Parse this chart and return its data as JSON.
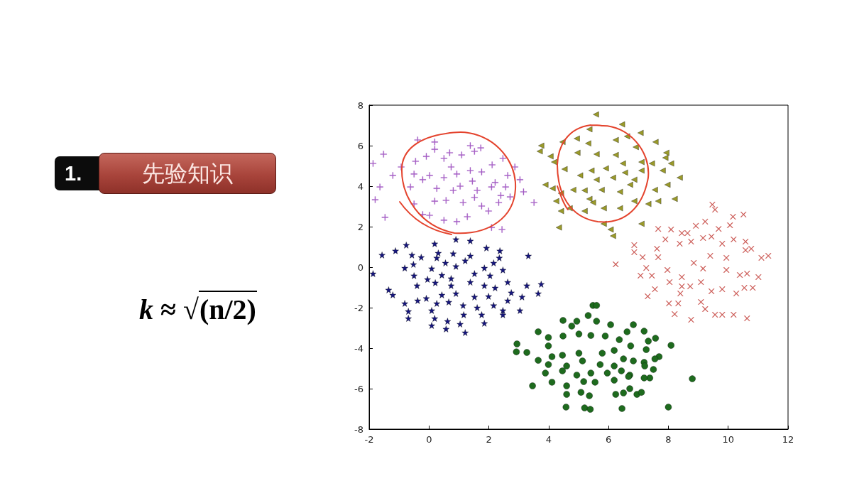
{
  "chart_data": {
    "type": "scatter",
    "annotations": [
      "1.",
      "先验知识",
      "k ≈ √(n/2)"
    ],
    "xlim": [
      -2,
      12
    ],
    "ylim": [
      -8,
      8
    ],
    "xticks": [
      -2,
      0,
      2,
      4,
      6,
      8,
      10,
      12
    ],
    "yticks": [
      -8,
      -6,
      -4,
      -2,
      0,
      2,
      4,
      6,
      8
    ],
    "series": [
      {
        "marker": "plus",
        "color": "#a45cc4",
        "x": [
          -1.52,
          -0.38,
          0.19,
          0.19,
          -1.87,
          -1.21,
          -1.64,
          -1.8,
          -1.47,
          -0.45,
          -0.09,
          0.5,
          0.69,
          1.09,
          1.38,
          1.73,
          1.52,
          2.11,
          2.47,
          2.87,
          3.04,
          3.16,
          3.51,
          2.63,
          2.21,
          1.76,
          1.45,
          0.93,
          0.5,
          0.02,
          -0.21,
          -0.5,
          -0.62,
          0.26,
          0.81,
          1.04,
          1.61,
          2.09,
          2.56,
          0.19,
          0.57,
          1.14,
          1.52,
          1.76,
          2.33,
          -0.5,
          -0.21,
          0.5,
          0.93,
          1.28,
          1.99,
          2.44,
          2.09,
          0.02,
          0.74,
          1.38,
          2.4,
          2.71,
          -0.93
        ],
        "values": [
          5.58,
          6.28,
          6.18,
          5.82,
          5.12,
          4.53,
          3.96,
          3.33,
          2.46,
          5.23,
          5.47,
          5.37,
          5.65,
          5.54,
          6.0,
          5.89,
          5.72,
          5.05,
          5.37,
          4.95,
          4.32,
          3.72,
          3.19,
          4.53,
          4.18,
          4.7,
          4.25,
          4.6,
          4.42,
          4.53,
          4.32,
          4.6,
          3.96,
          3.89,
          3.79,
          4.0,
          3.79,
          3.96,
          3.96,
          3.26,
          3.3,
          3.19,
          3.44,
          3.02,
          3.19,
          3.12,
          2.6,
          2.32,
          2.25,
          2.49,
          2.77,
          1.86,
          1.96,
          2.56,
          4.95,
          4.77,
          3.54,
          3.47,
          4.95
        ]
      },
      {
        "marker": "triangle",
        "color": "#9a9a2a",
        "x": [
          5.58,
          6.45,
          7.07,
          7.57,
          3.75,
          3.7,
          4.06,
          4.46,
          4.94,
          5.36,
          5.32,
          6.24,
          6.62,
          6.91,
          7.93,
          7.9,
          8.09,
          8.38,
          7.81,
          7.45,
          7.1,
          4.18,
          4.53,
          3.89,
          4.13,
          4.41,
          4.25,
          4.41,
          4.7,
          4.34,
          5.2,
          5.48,
          5.84,
          6.07,
          6.15,
          5.84,
          7.1,
          6.38,
          6.86,
          7.33,
          7.66,
          8.21,
          7.97,
          7.55,
          4.96,
          5.6,
          5.91,
          5.43,
          5.05,
          5.6,
          6.15,
          6.55,
          6.86,
          7.1,
          5.2,
          5.77,
          6.38,
          6.72,
          5.36,
          4.82,
          6.24,
          6.48
        ],
        "values": [
          7.54,
          7.05,
          6.63,
          6.18,
          6.0,
          5.72,
          5.47,
          6.18,
          6.35,
          6.81,
          6.11,
          6.28,
          6.46,
          5.93,
          5.65,
          5.4,
          5.12,
          4.42,
          4.77,
          5.12,
          5.19,
          5.19,
          4.84,
          4.07,
          3.89,
          3.65,
          3.26,
          2.77,
          2.91,
          1.96,
          2.77,
          3.19,
          2.91,
          1.86,
          1.54,
          2.14,
          2.14,
          2.91,
          3.26,
          3.12,
          3.26,
          3.37,
          4.07,
          3.82,
          5.65,
          5.58,
          4.88,
          4.77,
          4.53,
          4.32,
          4.42,
          4.67,
          4.32,
          4.77,
          3.79,
          3.82,
          3.72,
          4.07,
          3.37,
          3.82,
          5.54,
          5.12
        ]
      },
      {
        "marker": "cross",
        "color": "#c8504c",
        "x": [
          9.47,
          9.56,
          10.16,
          10.51,
          7.66,
          8.09,
          8.45,
          8.64,
          8.92,
          9.23,
          9.68,
          10.06,
          6.86,
          6.86,
          6.24,
          7.14,
          7.62,
          7.9,
          8.38,
          8.76,
          9.16,
          9.44,
          9.8,
          10.18,
          10.58,
          10.77,
          11.11,
          11.34,
          7.26,
          7.07,
          7.45,
          7.55,
          7.31,
          7.97,
          8.04,
          8.45,
          8.45,
          8.73,
          8.4,
          8.02,
          8.33,
          8.21,
          8.76,
          9.09,
          9.23,
          9.56,
          9.8,
          10.18,
          10.63,
          10.27,
          10.54,
          10.82,
          10.39,
          10.63,
          11.01,
          9.8,
          9.44,
          9.16,
          8.85,
          9.4,
          9.94,
          9.94,
          9.09,
          10.58,
          7.66
        ],
        "values": [
          3.09,
          2.84,
          2.49,
          2.6,
          1.89,
          1.86,
          1.68,
          1.68,
          2.04,
          2.25,
          1.89,
          2.07,
          1.09,
          0.74,
          0.14,
          0.49,
          0.91,
          1.37,
          1.16,
          1.26,
          1.44,
          1.51,
          1.16,
          1.37,
          1.26,
          0.91,
          0.46,
          0.56,
          -0.04,
          -0.42,
          -0.42,
          -1.09,
          -1.44,
          -0.14,
          -0.74,
          -0.49,
          -0.95,
          -0.95,
          -1.3,
          -1.79,
          -1.79,
          -2.32,
          -2.6,
          -1.72,
          -2.07,
          -2.35,
          -2.35,
          -2.35,
          -2.53,
          -1.3,
          -1.02,
          -1.02,
          -0.39,
          -0.32,
          -0.49,
          -1.09,
          -1.19,
          -0.07,
          0.21,
          0.56,
          0.46,
          -0.14,
          -0.74,
          0.84,
          0.49
        ]
      },
      {
        "marker": "star",
        "color": "#16167e",
        "x": [
          -1.87,
          -1.57,
          -1.12,
          -0.76,
          0.19,
          0.9,
          1.38,
          1.92,
          2.37,
          3.32,
          -0.57,
          -0.26,
          0.31,
          0.81,
          1.38,
          -0.52,
          -0.81,
          0.26,
          0.55,
          1.21,
          2.16,
          2.35,
          0.09,
          0.9,
          1.85,
          2.47,
          -0.5,
          -0.05,
          0.43,
          0.74,
          1.52,
          2.04,
          2.63,
          -0.4,
          0.21,
          0.74,
          1.38,
          1.85,
          2.21,
          3.27,
          3.75,
          -1.35,
          -1.21,
          -0.09,
          0.43,
          0.9,
          1.52,
          1.99,
          2.75,
          3.11,
          3.65,
          -0.81,
          -0.38,
          0.26,
          0.66,
          1.14,
          1.61,
          2.16,
          2.63,
          2.47,
          3.04,
          -0.69,
          -0.69,
          0.09,
          0.19,
          0.09,
          0.62,
          0.57,
          1.16,
          1.04,
          1.21,
          1.85,
          1.76,
          2.47
        ],
        "values": [
          -0.32,
          0.6,
          0.81,
          1.09,
          1.16,
          1.37,
          1.3,
          0.95,
          0.81,
          0.56,
          0.6,
          0.49,
          0.7,
          0.67,
          0.56,
          0.14,
          -0.04,
          0.46,
          0.21,
          0.32,
          0.21,
          0.46,
          -0.07,
          0.04,
          -0.04,
          -0.14,
          -0.42,
          -0.6,
          -0.39,
          -0.56,
          -0.32,
          -0.42,
          -0.74,
          -0.91,
          -0.77,
          -0.91,
          -0.74,
          -0.91,
          -1.02,
          -0.91,
          -0.84,
          -1.12,
          -1.37,
          -1.54,
          -1.37,
          -1.3,
          -1.47,
          -1.44,
          -1.26,
          -1.47,
          -1.3,
          -1.79,
          -1.65,
          -1.79,
          -1.72,
          -1.89,
          -2.0,
          -1.89,
          -1.65,
          -2.14,
          -2.14,
          -2.18,
          -2.53,
          -2.14,
          -2.53,
          -2.88,
          -2.67,
          -3.05,
          -2.35,
          -2.81,
          -3.23,
          -2.77,
          -2.35,
          -2.35
        ]
      },
      {
        "marker": "circle",
        "color": "#1e6b1e",
        "x": [
          5.48,
          5.6,
          5.32,
          4.48,
          5.6,
          4.94,
          4.77,
          6.07,
          6.83,
          3.65,
          6.62,
          7.19,
          7.57,
          7.33,
          8.09,
          2.94,
          2.92,
          3.27,
          3.99,
          4.48,
          5.01,
          5.41,
          5.89,
          6.36,
          6.74,
          3.99,
          4.46,
          5.01,
          5.79,
          6.19,
          7.26,
          4.11,
          3.65,
          7.69,
          7.55,
          7.19,
          6.83,
          6.5,
          3.99,
          4.6,
          5.13,
          5.72,
          6.19,
          7.21,
          7.5,
          3.89,
          4.46,
          4.94,
          5.41,
          5.96,
          6.43,
          6.71,
          7.38,
          7.19,
          8.8,
          3.46,
          4.11,
          4.6,
          5.17,
          5.55,
          6.19,
          6.67,
          4.6,
          5.08,
          5.36,
          6.24,
          6.5,
          6.71,
          6.95,
          7.1,
          4.58,
          5.2,
          5.39,
          6.45,
          8.0
        ],
        "values": [
          -1.89,
          -1.89,
          -2.39,
          -2.63,
          -2.67,
          -2.67,
          -2.91,
          -2.84,
          -2.84,
          -3.19,
          -3.19,
          -3.16,
          -3.51,
          -3.65,
          -3.86,
          -3.79,
          -4.18,
          -4.21,
          -3.47,
          -3.4,
          -3.3,
          -3.37,
          -3.4,
          -3.58,
          -3.89,
          -3.89,
          -4.35,
          -4.25,
          -4.25,
          -4.11,
          -4.07,
          -4.42,
          -4.6,
          -4.42,
          -4.53,
          -4.7,
          -4.63,
          -4.53,
          -4.81,
          -4.88,
          -4.63,
          -4.81,
          -4.88,
          -4.88,
          -5.05,
          -5.23,
          -5.12,
          -5.33,
          -5.23,
          -5.23,
          -5.12,
          -5.33,
          -5.47,
          -5.47,
          -5.51,
          -5.86,
          -5.68,
          -5.86,
          -5.65,
          -5.68,
          -5.58,
          -5.4,
          -6.28,
          -6.18,
          -6.35,
          -6.28,
          -6.21,
          -6.0,
          -6.28,
          -6.18,
          -6.91,
          -6.95,
          -7.02,
          -6.98,
          -6.91
        ]
      }
    ]
  }
}
